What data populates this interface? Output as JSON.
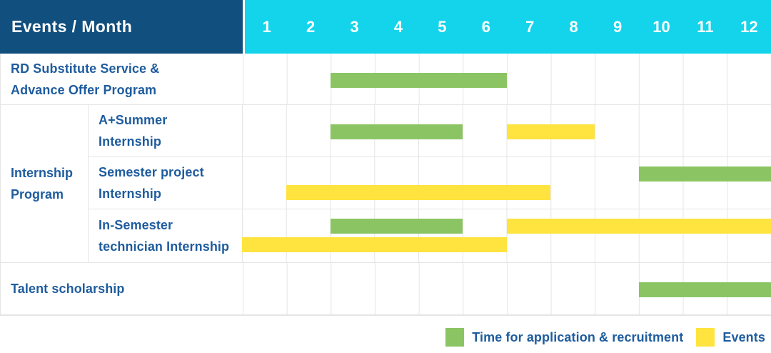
{
  "header": {
    "title": "Events / Month",
    "months": [
      "1",
      "2",
      "3",
      "4",
      "5",
      "6",
      "7",
      "8",
      "9",
      "10",
      "11",
      "12"
    ]
  },
  "colors": {
    "navy": "#114F7E",
    "cyan": "#14D4EC",
    "green": "#8BC563",
    "yellow": "#FFE33E",
    "label_blue": "#1E5C9E",
    "grid": "#E5E5E5"
  },
  "legend": {
    "items": [
      {
        "label": "Time for application & recruitment",
        "color": "green"
      },
      {
        "label": "Events",
        "color": "yellow"
      }
    ]
  },
  "group_label": {
    "lines": [
      "Internship",
      "Program"
    ],
    "text": "Internship Program"
  },
  "chart_data": {
    "type": "gantt",
    "x_axis": {
      "label": "Month",
      "ticks": [
        1,
        2,
        3,
        4,
        5,
        6,
        7,
        8,
        9,
        10,
        11,
        12
      ]
    },
    "legend": {
      "green": "Time for application & recruitment",
      "yellow": "Events"
    },
    "rows": [
      {
        "event": "RD Substitute Service & Advance Offer Program",
        "group": null,
        "label_lines": [
          "RD Substitute Service &",
          "Advance Offer Program"
        ],
        "bars": [
          {
            "color": "green",
            "start": 3,
            "end": 6,
            "track": "center"
          }
        ]
      },
      {
        "event": "A+Summer Internship",
        "group": "Internship Program",
        "label_lines": [
          "A+Summer",
          "Internship"
        ],
        "bars": [
          {
            "color": "green",
            "start": 3,
            "end": 5,
            "track": "center"
          },
          {
            "color": "yellow",
            "start": 7,
            "end": 8,
            "track": "center"
          }
        ]
      },
      {
        "event": "Semester project Internship",
        "group": "Internship Program",
        "label_lines": [
          "Semester project",
          "Internship"
        ],
        "bars": [
          {
            "color": "green",
            "start": 10,
            "end": 12,
            "track": "top"
          },
          {
            "color": "yellow",
            "start": 2,
            "end": 7,
            "track": "bottom"
          }
        ]
      },
      {
        "event": "In-Semester technician Internship",
        "group": "Internship Program",
        "label_lines": [
          "In-Semester",
          "technician Internship"
        ],
        "bars": [
          {
            "color": "green",
            "start": 3,
            "end": 5,
            "track": "top"
          },
          {
            "color": "yellow",
            "start": 7,
            "end": 12,
            "track": "top"
          },
          {
            "color": "yellow",
            "start": 1,
            "end": 6,
            "track": "bottom"
          }
        ]
      },
      {
        "event": "Talent scholarship",
        "group": null,
        "label_lines": [
          "Talent scholarship"
        ],
        "bars": [
          {
            "color": "green",
            "start": 10,
            "end": 12,
            "track": "center"
          }
        ]
      }
    ]
  }
}
